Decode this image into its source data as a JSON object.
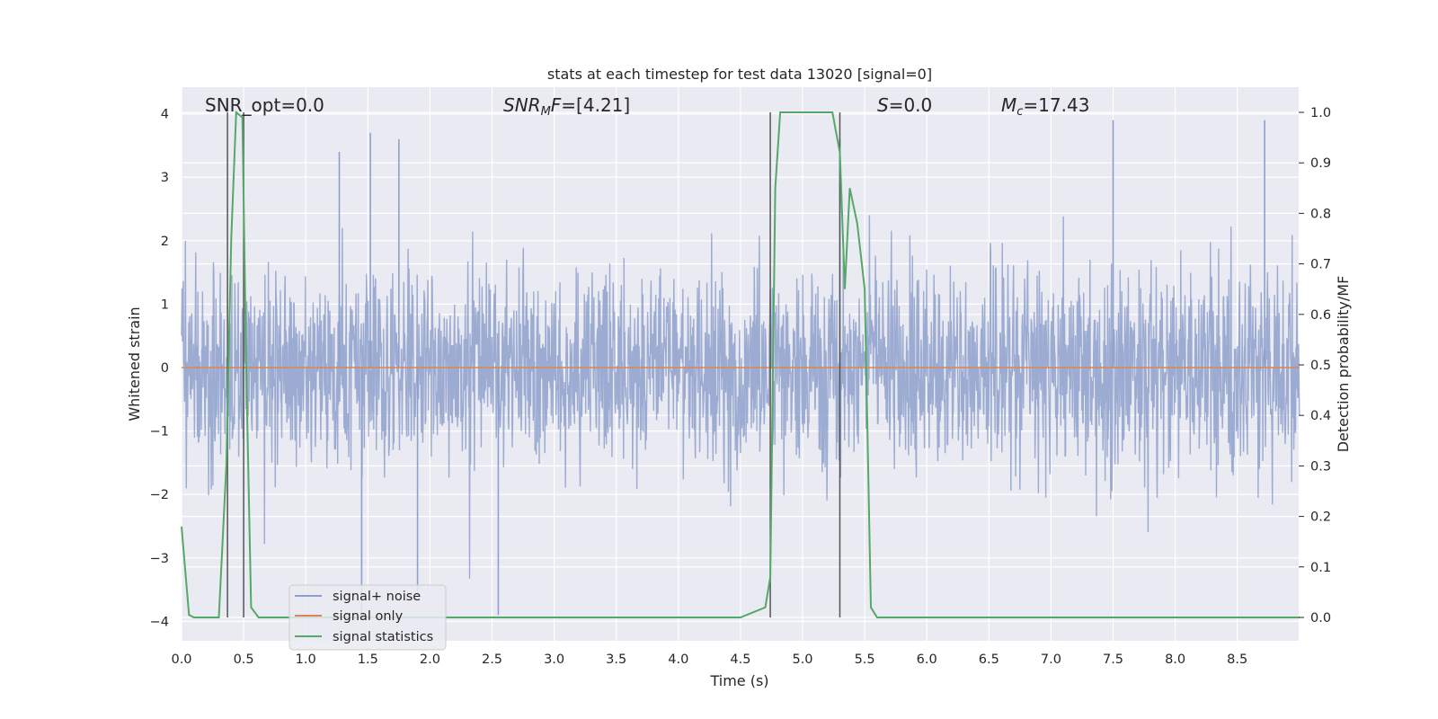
{
  "chart_data": {
    "type": "line",
    "title": "stats at each timestep for test data 13020 [signal=0]",
    "xlabel": "Time (s)",
    "ylabel": "Whitened strain",
    "y2label": "Detection probability/MF",
    "xlim": [
      0.0,
      9.0
    ],
    "ylim": [
      -4.3,
      4.4
    ],
    "y2lim": [
      -0.05,
      1.045
    ],
    "xticks": [
      "0.0",
      "0.5",
      "1.0",
      "1.5",
      "2.0",
      "2.5",
      "3.0",
      "3.5",
      "4.0",
      "4.5",
      "5.0",
      "5.5",
      "6.0",
      "6.5",
      "7.0",
      "7.5",
      "8.0",
      "8.5"
    ],
    "yticks": [
      "4",
      "3",
      "2",
      "1",
      "0",
      "−1",
      "−2",
      "−3",
      "−4"
    ],
    "y2ticks": [
      "1.0",
      "0.9",
      "0.8",
      "0.7",
      "0.6",
      "0.5",
      "0.4",
      "0.3",
      "0.2",
      "0.1",
      "0.0"
    ],
    "grid": true,
    "legend_position": "lower-left",
    "annotations": {
      "snr_opt": "SNR_opt=0.0",
      "snr_mf_var": "SNR",
      "snr_mf_sub": "M",
      "snr_mf_mid": "F",
      "snr_mf_value": "=[4.21]",
      "s_var": "S",
      "s_value": "=0.0",
      "mc_var": "M",
      "mc_sub": "c",
      "mc_value": "=17.43"
    },
    "series": [
      {
        "name": "signal+ noise",
        "color": "#8da0cb",
        "axis": "left",
        "description": "whitened noise samples, roughly within ±2.5 with spikes to about ±3.8",
        "envelope_peaks": [
          {
            "x": 1.52,
            "y": 3.7
          },
          {
            "x": 1.75,
            "y": 3.6
          },
          {
            "x": 1.27,
            "y": 3.4
          },
          {
            "x": 7.5,
            "y": 3.9
          },
          {
            "x": 8.72,
            "y": 3.9
          },
          {
            "x": 5.3,
            "y": 3.6
          },
          {
            "x": 2.55,
            "y": -3.9
          },
          {
            "x": 1.45,
            "y": -3.9
          },
          {
            "x": 1.9,
            "y": -3.6
          }
        ]
      },
      {
        "name": "signal only",
        "color": "#dd8452",
        "axis": "left",
        "x": [
          0.0,
          9.0
        ],
        "y": [
          0.0,
          0.0
        ]
      },
      {
        "name": "signal statistics",
        "color": "#55a868",
        "axis": "right",
        "x": [
          0.0,
          0.06,
          0.1,
          0.2,
          0.3,
          0.36,
          0.4,
          0.44,
          0.49,
          0.52,
          0.56,
          0.62,
          0.7,
          1.0,
          2.0,
          3.0,
          4.0,
          4.5,
          4.7,
          4.74,
          4.78,
          4.82,
          5.0,
          5.24,
          5.3,
          5.34,
          5.38,
          5.44,
          5.5,
          5.55,
          5.6,
          5.66,
          6.0,
          7.0,
          8.0,
          9.0
        ],
        "y": [
          0.18,
          0.005,
          0.0,
          0.0,
          0.0,
          0.3,
          0.75,
          1.0,
          0.99,
          0.5,
          0.02,
          0.0,
          0.0,
          0.0,
          0.0,
          0.0,
          0.0,
          0.0,
          0.02,
          0.08,
          0.85,
          1.0,
          1.0,
          1.0,
          0.92,
          0.65,
          0.85,
          0.78,
          0.65,
          0.02,
          0.0,
          0.0,
          0.0,
          0.0,
          0.0,
          0.0
        ]
      }
    ],
    "vertical_markers_x": [
      0.37,
      0.5,
      4.74,
      5.3
    ]
  }
}
